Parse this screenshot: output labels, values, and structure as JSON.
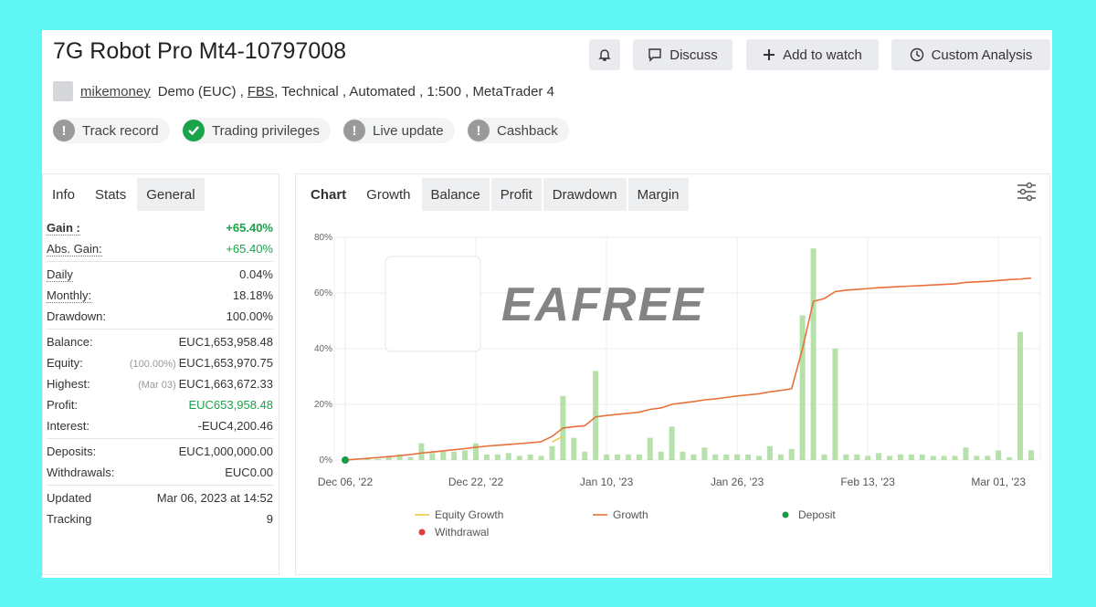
{
  "header": {
    "title": "7G Robot Pro Mt4-10797008",
    "user": "mikemoney",
    "details": [
      "Demo (EUC) ,",
      "FBS",
      ", Technical , Automated , 1:500 , MetaTrader 4"
    ],
    "buttons": [
      "Discuss",
      "Add to watch",
      "Custom Analysis"
    ]
  },
  "badges": [
    {
      "label": "Track record",
      "ok": false
    },
    {
      "label": "Trading privileges",
      "ok": true
    },
    {
      "label": "Live update",
      "ok": false
    },
    {
      "label": "Cashback",
      "ok": false
    }
  ],
  "stats_tabs": {
    "items": [
      "Info",
      "Stats",
      "General"
    ],
    "active": 1
  },
  "stats": [
    [
      {
        "label": "Gain :",
        "value": "+65.40%",
        "highlight": true,
        "bold": true,
        "dotted": true
      },
      {
        "label": "Abs. Gain:",
        "value": "+65.40%",
        "highlight": true,
        "dotted": true
      }
    ],
    [
      {
        "label": "Daily",
        "value": "0.04%",
        "dotted": true
      },
      {
        "label": "Monthly:",
        "value": "18.18%",
        "dotted": true
      },
      {
        "label": "Drawdown:",
        "value": "100.00%"
      }
    ],
    [
      {
        "label": "Balance:",
        "value": "EUC1,653,958.48"
      },
      {
        "label": "Equity:",
        "note": "(100.00%)",
        "value": "EUC1,653,970.75"
      },
      {
        "label": "Highest:",
        "note": "(Mar 03)",
        "value": "EUC1,663,672.33"
      },
      {
        "label": "Profit:",
        "value": "EUC653,958.48",
        "highlight": true
      },
      {
        "label": "Interest:",
        "value": "-EUC4,200.46"
      }
    ],
    [
      {
        "label": "Deposits:",
        "value": "EUC1,000,000.00"
      },
      {
        "label": "Withdrawals:",
        "value": "EUC0.00"
      }
    ],
    [
      {
        "label": "Updated",
        "value": "Mar 06, 2023 at 14:52"
      },
      {
        "label": "Tracking",
        "value": "9"
      }
    ]
  ],
  "chart_tabs": {
    "items": [
      "Chart",
      "Growth",
      "Balance",
      "Profit",
      "Drawdown",
      "Margin"
    ],
    "active": 1
  },
  "chart_data": {
    "type": "line",
    "watermark": "EAFREE",
    "categories": [
      "Dec 06, '22",
      null,
      null,
      null,
      null,
      null,
      null,
      null,
      null,
      null,
      null,
      null,
      "Dec 22, '22",
      null,
      null,
      null,
      null,
      null,
      null,
      null,
      null,
      null,
      null,
      null,
      "Jan 10, '23",
      null,
      null,
      null,
      null,
      null,
      null,
      null,
      null,
      null,
      null,
      null,
      "Jan 26, '23",
      null,
      null,
      null,
      null,
      null,
      null,
      null,
      null,
      null,
      null,
      null,
      "Feb 13, '23",
      null,
      null,
      null,
      null,
      null,
      null,
      null,
      null,
      null,
      null,
      null,
      "Mar 01, '23",
      null,
      null,
      null
    ],
    "ylim": [
      0,
      80
    ],
    "yticks": [
      {
        "value": 0,
        "label": "0%"
      },
      {
        "value": 20,
        "label": "20%"
      },
      {
        "value": 40,
        "label": "40%"
      },
      {
        "value": 60,
        "label": "60%"
      },
      {
        "value": 80,
        "label": "80%"
      }
    ],
    "grid": true,
    "bars": {
      "color": "#a9dc9c",
      "values": [
        0,
        0,
        0.5,
        0.5,
        1.5,
        2,
        1,
        6,
        2.5,
        3,
        3,
        3.5,
        6,
        2,
        2,
        2.5,
        1.5,
        2,
        1.5,
        5,
        23,
        8,
        3,
        32,
        2,
        2,
        2,
        2,
        8,
        3,
        12,
        3,
        2,
        4.5,
        2,
        2,
        2,
        2,
        1.5,
        5,
        2,
        4,
        52,
        76,
        2,
        40,
        2,
        2,
        1.5,
        2.5,
        1.5,
        2,
        2,
        2,
        1.5,
        1.5,
        1.5,
        4.5,
        1.5,
        1.5,
        3.5,
        1,
        46,
        3.5
      ]
    },
    "series": [
      {
        "name": "Equity Growth",
        "color": "#f2c744",
        "symbol": "line",
        "values": [
          null,
          null,
          null,
          null,
          null,
          null,
          null,
          null,
          null,
          null,
          null,
          null,
          null,
          null,
          null,
          null,
          null,
          null,
          null,
          6.5,
          8.5,
          null,
          null,
          null,
          null,
          null,
          null,
          null,
          null,
          null,
          null,
          null,
          null,
          null,
          null,
          null,
          null,
          null,
          null,
          null,
          null,
          null,
          null,
          null,
          null,
          null,
          null,
          null,
          null,
          null,
          null,
          null,
          null,
          null,
          null,
          null,
          null,
          null,
          null,
          null,
          null,
          null,
          null,
          null
        ]
      },
      {
        "name": "Growth",
        "color": "#e8703a",
        "symbol": "line",
        "values": [
          0,
          0.3,
          0.6,
          0.9,
          1.2,
          1.6,
          2,
          2.5,
          2.9,
          3.3,
          3.7,
          4.1,
          4.6,
          5,
          5.3,
          5.6,
          5.9,
          6.2,
          6.6,
          8.5,
          11.5,
          12,
          12.3,
          15.5,
          16,
          16.4,
          16.8,
          17.2,
          18.2,
          18.7,
          20,
          20.5,
          21,
          21.6,
          22,
          22.5,
          23,
          23.4,
          23.8,
          24.5,
          25,
          25.6,
          40,
          57,
          58,
          60.5,
          61,
          61.3,
          61.6,
          61.9,
          62.1,
          62.3,
          62.5,
          62.7,
          62.9,
          63.1,
          63.3,
          63.8,
          64,
          64.2,
          64.5,
          64.8,
          65,
          65.4
        ]
      },
      {
        "name": "Deposit",
        "color": "#1a9a45",
        "symbol": "dot",
        "values": [
          0,
          null,
          null,
          null,
          null,
          null,
          null,
          null,
          null,
          null,
          null,
          null,
          null,
          null,
          null,
          null,
          null,
          null,
          null,
          null,
          null,
          null,
          null,
          null,
          null,
          null,
          null,
          null,
          null,
          null,
          null,
          null,
          null,
          null,
          null,
          null,
          null,
          null,
          null,
          null,
          null,
          null,
          null,
          null,
          null,
          null,
          null,
          null,
          null,
          null,
          null,
          null,
          null,
          null,
          null,
          null,
          null,
          null,
          null,
          null,
          null,
          null,
          null,
          null
        ]
      },
      {
        "name": "Withdrawal",
        "color": "#e03b3b",
        "symbol": "dot",
        "values": [
          null,
          null,
          null,
          null,
          null,
          null,
          null,
          null,
          null,
          null,
          null,
          null,
          null,
          null,
          null,
          null,
          null,
          null,
          null,
          null,
          null,
          null,
          null,
          null,
          null,
          null,
          null,
          null,
          null,
          null,
          null,
          null,
          null,
          null,
          null,
          null,
          null,
          null,
          null,
          null,
          null,
          null,
          null,
          null,
          null,
          null,
          null,
          null,
          null,
          null,
          null,
          null,
          null,
          null,
          null,
          null,
          null,
          null,
          null,
          null,
          null,
          null,
          null,
          null
        ]
      }
    ]
  }
}
